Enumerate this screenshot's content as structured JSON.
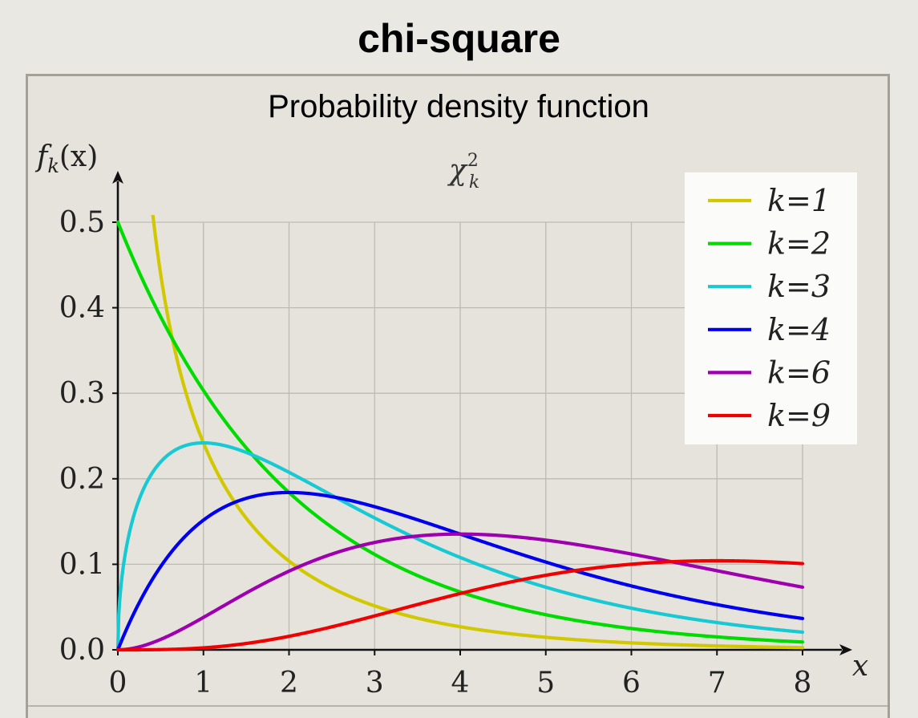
{
  "page": {
    "title": "chi-square"
  },
  "chart_data": {
    "type": "line",
    "title": "Probability density function",
    "subtitle": "χ²ₖ",
    "subtitle_main": "χ",
    "subtitle_sup": "2",
    "subtitle_sub": "k",
    "xlabel": "x",
    "ylabel": "fₖ(x)",
    "ylabel_main": "f",
    "ylabel_sub": "k",
    "ylabel_args": "(x)",
    "xlim": [
      0,
      8
    ],
    "ylim": [
      0,
      0.5
    ],
    "xticks": [
      "0",
      "1",
      "2",
      "3",
      "4",
      "5",
      "6",
      "7",
      "8"
    ],
    "yticks": [
      "0.0",
      "0.1",
      "0.2",
      "0.3",
      "0.4",
      "0.5"
    ],
    "grid": true,
    "legend_position": "top-right",
    "series": [
      {
        "name": "k=1",
        "k": 1,
        "color": "#d2c800"
      },
      {
        "name": "k=2",
        "k": 2,
        "color": "#00dc00"
      },
      {
        "name": "k=3",
        "k": 3,
        "color": "#16c9d2"
      },
      {
        "name": "k=4",
        "k": 4,
        "color": "#0000ee"
      },
      {
        "name": "k=6",
        "k": 6,
        "color": "#9e00b0"
      },
      {
        "name": "k=9",
        "k": 9,
        "color": "#f00000"
      }
    ]
  }
}
